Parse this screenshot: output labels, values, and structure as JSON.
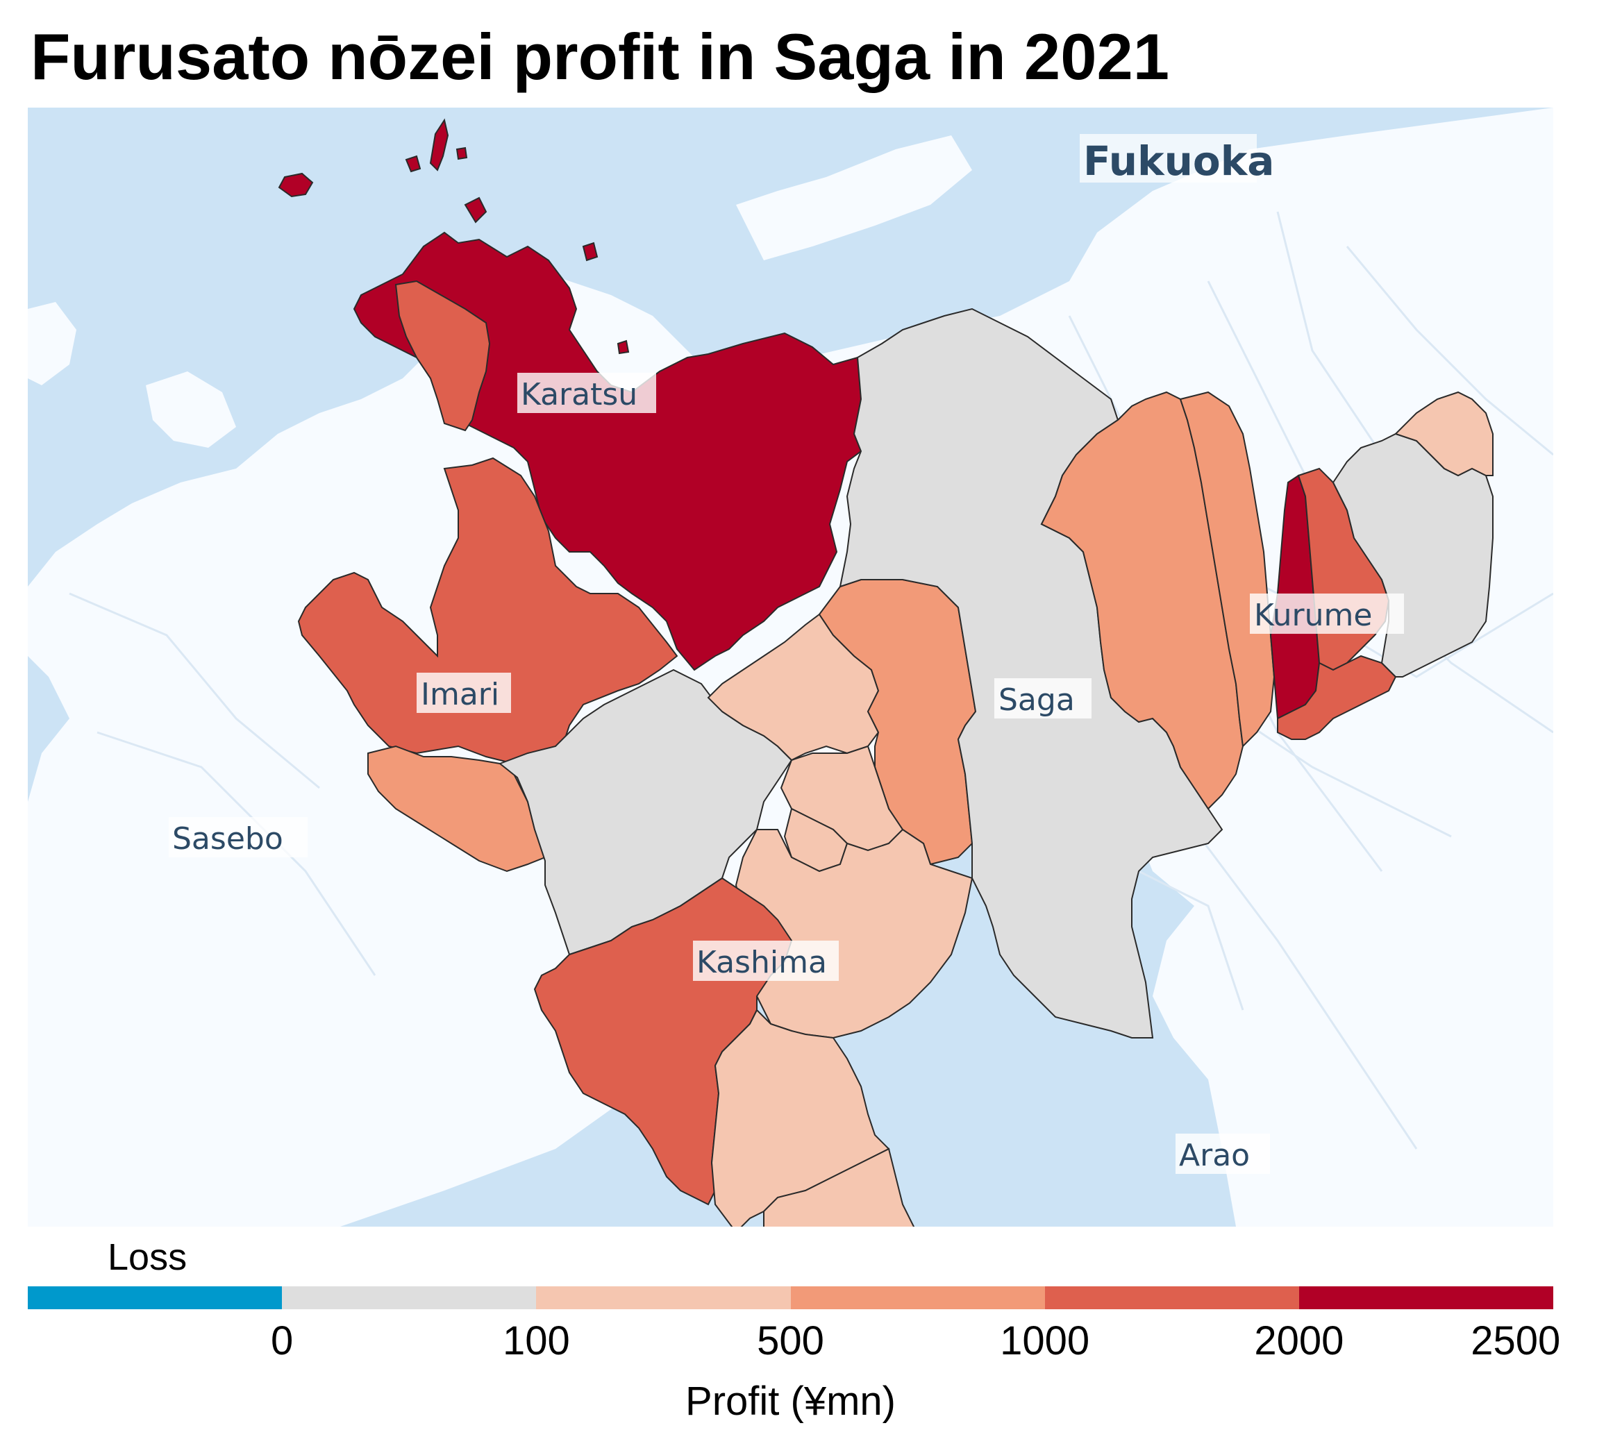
{
  "title": "Furusato nōzei profit in Saga in 2021",
  "map": {
    "colors": {
      "sea": "#cce3f5",
      "land": "#f7fbff",
      "roads": "#dbe8f4",
      "border": "#2a2a2a",
      "label_text": "#2c4a66"
    },
    "labels": {
      "fukuoka": "Fukuoka",
      "karatsu": "Karatsu",
      "imari": "Imari",
      "saga": "Saga",
      "kurume": "Kurume",
      "sasebo": "Sasebo",
      "kashima": "Kashima",
      "arao": "Arao"
    }
  },
  "legend": {
    "loss_label": "Loss",
    "axis_title": "Profit (¥mn)",
    "bins": [
      {
        "label": "Loss",
        "color": "#0099cc"
      },
      {
        "label": "0-100",
        "color": "#dedede"
      },
      {
        "label": "100-500",
        "color": "#f5c6b0"
      },
      {
        "label": "500-1000",
        "color": "#f29a78"
      },
      {
        "label": "1000-2000",
        "color": "#de604e"
      },
      {
        "label": "2000-2500",
        "color": "#b10026"
      }
    ],
    "ticks": [
      "0",
      "100",
      "500",
      "1000",
      "2000",
      "2500"
    ]
  }
}
